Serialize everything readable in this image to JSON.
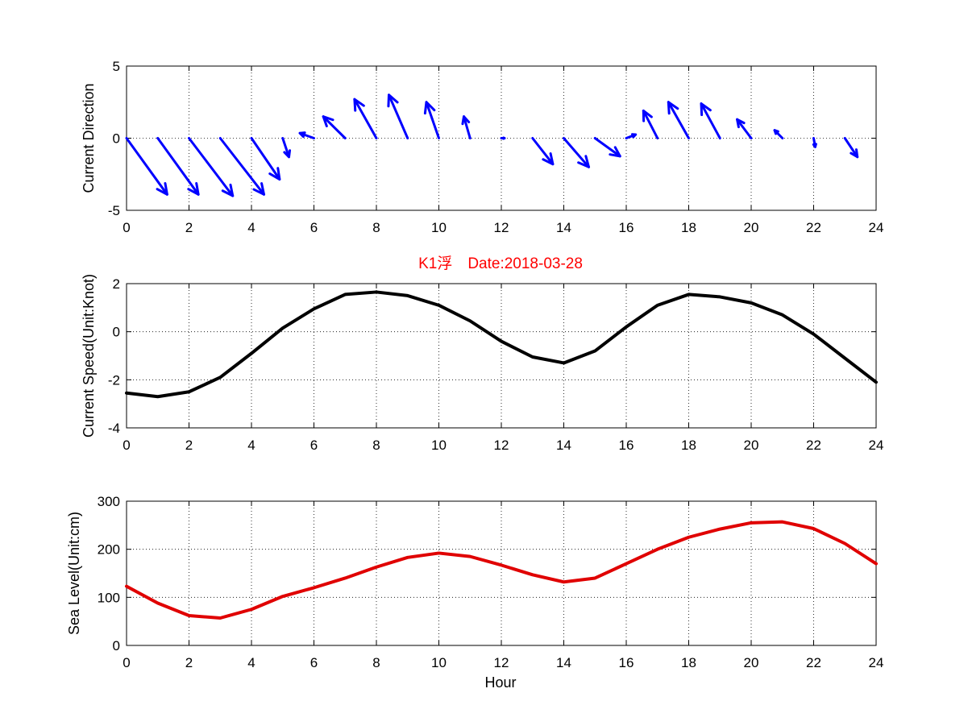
{
  "figure": {
    "title": "K1浮　Date:2018-03-28",
    "xlabel": "Hour"
  },
  "chart_data": [
    {
      "type": "quiver",
      "ylabel": "Current Direction",
      "xlim": [
        0,
        24
      ],
      "ylim": [
        -5,
        5
      ],
      "xticks": [
        0,
        2,
        4,
        6,
        8,
        10,
        12,
        14,
        16,
        18,
        20,
        22,
        24
      ],
      "yticks": [
        -5,
        0,
        5
      ],
      "grid": true,
      "color": "#0000ff",
      "x": [
        0,
        1,
        2,
        3,
        4,
        5,
        6,
        7,
        8,
        9,
        10,
        11,
        12,
        13,
        14,
        15,
        16,
        17,
        18,
        19,
        20,
        21,
        22,
        23
      ],
      "u": [
        1.3,
        1.3,
        1.4,
        1.4,
        0.9,
        0.2,
        -0.45,
        -0.7,
        -0.7,
        -0.6,
        -0.4,
        -0.2,
        0.1,
        0.65,
        0.8,
        0.8,
        0.3,
        -0.45,
        -0.65,
        -0.6,
        -0.45,
        -0.25,
        0.05,
        0.4
      ],
      "v": [
        -3.9,
        -3.9,
        -4.0,
        -3.9,
        -2.85,
        -1.3,
        0.35,
        1.5,
        2.7,
        3.0,
        2.5,
        1.5,
        0.0,
        -1.8,
        -2.0,
        -1.25,
        0.25,
        1.9,
        2.5,
        2.4,
        1.3,
        0.55,
        -0.6,
        -1.3
      ],
      "comment": "arrow tails at (x, 0); arrow components (u, v) drawn with automatic quiver scaling"
    },
    {
      "type": "line",
      "ylabel": "Current Speed(Unit:Knot)",
      "xlim": [
        0,
        24
      ],
      "ylim": [
        -4,
        2
      ],
      "xticks": [
        0,
        2,
        4,
        6,
        8,
        10,
        12,
        14,
        16,
        18,
        20,
        22,
        24
      ],
      "yticks": [
        -4,
        -2,
        0,
        2
      ],
      "grid": true,
      "color": "#000000",
      "x": [
        0,
        1,
        2,
        3,
        4,
        5,
        6,
        7,
        8,
        9,
        10,
        11,
        12,
        13,
        14,
        15,
        16,
        17,
        18,
        19,
        20,
        21,
        22,
        23,
        24
      ],
      "y": [
        -2.55,
        -2.7,
        -2.5,
        -1.9,
        -0.9,
        0.15,
        0.95,
        1.55,
        1.65,
        1.5,
        1.1,
        0.45,
        -0.4,
        -1.05,
        -1.3,
        -0.8,
        0.2,
        1.1,
        1.55,
        1.45,
        1.2,
        0.7,
        -0.1,
        -1.1,
        -2.1
      ]
    },
    {
      "type": "line",
      "ylabel": "Sea Level(Unit:cm)",
      "xlabel": "Hour",
      "xlim": [
        0,
        24
      ],
      "ylim": [
        0,
        300
      ],
      "xticks": [
        0,
        2,
        4,
        6,
        8,
        10,
        12,
        14,
        16,
        18,
        20,
        22,
        24
      ],
      "yticks": [
        0,
        100,
        200,
        300
      ],
      "grid": true,
      "color": "#e00000",
      "x": [
        0,
        1,
        2,
        3,
        4,
        5,
        6,
        7,
        8,
        9,
        10,
        11,
        12,
        13,
        14,
        15,
        16,
        17,
        18,
        19,
        20,
        21,
        22,
        23,
        24
      ],
      "y": [
        123,
        88,
        62,
        57,
        75,
        102,
        120,
        140,
        163,
        183,
        192,
        185,
        167,
        147,
        132,
        140,
        170,
        200,
        225,
        242,
        255,
        257,
        243,
        212,
        170
      ]
    }
  ]
}
